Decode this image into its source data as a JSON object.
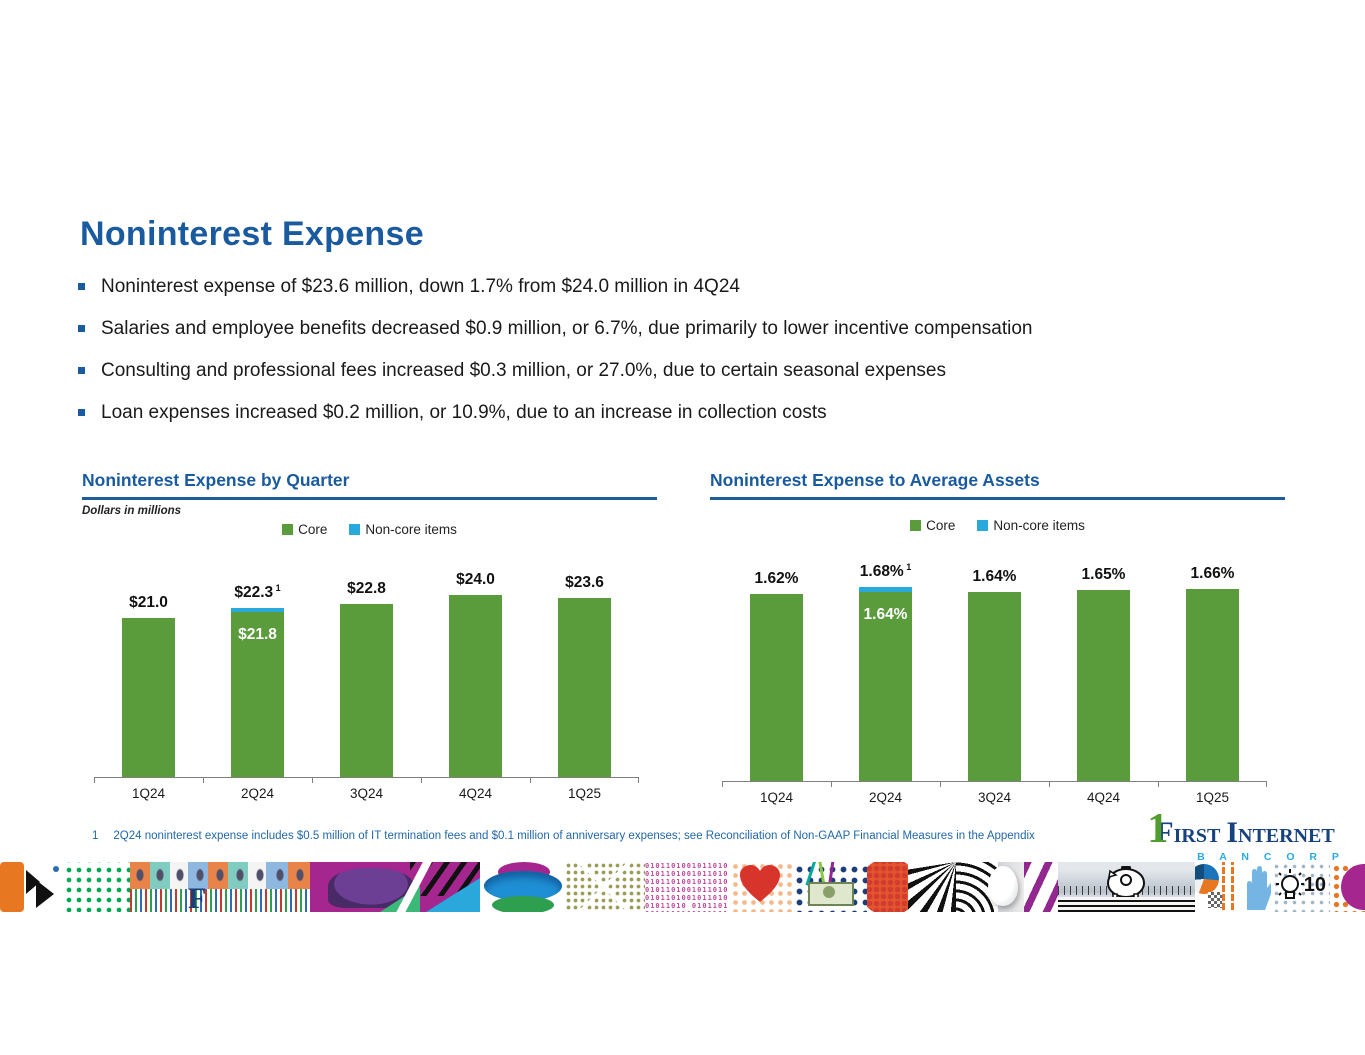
{
  "slide": {
    "title": "Noninterest Expense",
    "bullets": [
      "Noninterest expense of $23.6 million, down 1.7% from $24.0 million in 4Q24",
      "Salaries and employee benefits decreased $0.9 million, or 6.7%, due primarily to lower incentive compensation",
      "Consulting and professional fees increased $0.3 million, or 27.0%, due to certain seasonal expenses",
      "Loan expenses increased $0.2 million, or 10.9%, due to an increase in collection costs"
    ],
    "footnote": {
      "marker": "1",
      "text": "2Q24 noninterest expense includes $0.5 million of IT termination fees and $0.1 million of anniversary expenses; see Reconciliation of Non-GAAP Financial Measures in the Appendix"
    },
    "page_number": "10",
    "logo": {
      "mark": "1",
      "word1": "First",
      "word2": "Internet",
      "sub": "B A N C O R P"
    },
    "strip_letter": "F",
    "binary_row": "0101101001011010010110100101101001011010010110100101101001011010010110100101101001011010"
  },
  "colors": {
    "accent_blue": "#1a5a9e",
    "core_green": "#5a9b3c",
    "noncore_blue": "#29a8dc",
    "footnote_blue": "#2268a8",
    "logo_navy": "#16427e",
    "logo_green": "#4e9d2d",
    "logo_lightblue": "#29abe2"
  },
  "chart_data": [
    {
      "type": "bar",
      "title": "Noninterest Expense by Quarter",
      "subtitle": "Dollars in millions",
      "legend": [
        "Core",
        "Non-core items"
      ],
      "legend_colors": [
        "#5a9b3c",
        "#29a8dc"
      ],
      "categories": [
        "1Q24",
        "2Q24",
        "3Q24",
        "4Q24",
        "1Q25"
      ],
      "series": [
        {
          "name": "Core",
          "values": [
            21.0,
            21.8,
            22.8,
            24.0,
            23.6
          ]
        },
        {
          "name": "Non-core items",
          "values": [
            0,
            0.5,
            0,
            0,
            0
          ]
        }
      ],
      "totals": [
        21.0,
        22.3,
        22.8,
        24.0,
        23.6
      ],
      "total_labels": [
        "$21.0",
        "$22.3",
        "$22.8",
        "$24.0",
        "$23.6"
      ],
      "label_footnotes": [
        "",
        "1",
        "",
        "",
        ""
      ],
      "inside_labels": [
        "",
        "$21.8",
        "",
        "",
        ""
      ],
      "ylim": [
        0,
        29
      ],
      "grid": false,
      "legend_position": "top"
    },
    {
      "type": "bar",
      "title": "Noninterest Expense to Average Assets",
      "subtitle": "",
      "legend": [
        "Core",
        "Non-core items"
      ],
      "legend_colors": [
        "#5a9b3c",
        "#29a8dc"
      ],
      "categories": [
        "1Q24",
        "2Q24",
        "3Q24",
        "4Q24",
        "1Q25"
      ],
      "series": [
        {
          "name": "Core",
          "values": [
            1.62,
            1.64,
            1.64,
            1.65,
            1.66
          ]
        },
        {
          "name": "Non-core items",
          "values": [
            0,
            0.04,
            0,
            0,
            0
          ]
        }
      ],
      "totals": [
        1.62,
        1.68,
        1.64,
        1.65,
        1.66
      ],
      "total_labels": [
        "1.62%",
        "1.68%",
        "1.64%",
        "1.65%",
        "1.66%"
      ],
      "label_footnotes": [
        "",
        "1",
        "",
        "",
        ""
      ],
      "inside_labels": [
        "",
        "1.64%",
        "",
        "",
        ""
      ],
      "ylim": [
        0,
        1.93
      ],
      "grid": false,
      "legend_position": "top"
    }
  ]
}
